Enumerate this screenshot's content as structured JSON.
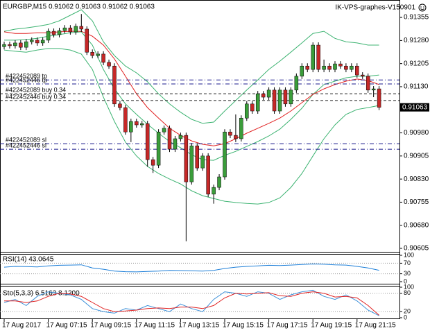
{
  "chart_data": [
    {
      "type": "candlestick",
      "title": "EURGBP,M15  0.91062 0.91063 0.91062 0.91063",
      "subtitle": "IK-VPS-graphes-V150901",
      "categories": [
        "17 Aug 2017",
        null,
        null,
        null,
        null,
        null,
        null,
        null,
        "17 Aug 07:15",
        null,
        null,
        null,
        null,
        null,
        null,
        null,
        "17 Aug 09:15",
        null,
        null,
        null,
        null,
        null,
        null,
        null,
        "17 Aug 11:15",
        null,
        null,
        null,
        null,
        null,
        null,
        null,
        "17 Aug 13:15",
        null,
        null,
        null,
        null,
        null,
        null,
        null,
        "17 Aug 15:15",
        null,
        null,
        null,
        null,
        null,
        null,
        null,
        "17 Aug 17:15",
        null,
        null,
        null,
        null,
        null,
        null,
        null,
        "17 Aug 19:15",
        null,
        null,
        null,
        null,
        null,
        null,
        null,
        "17 Aug 21:15",
        null,
        null,
        null,
        null
      ],
      "open": [
        0.9126,
        0.91267,
        0.91263,
        0.91272,
        0.91258,
        0.91276,
        0.91281,
        0.91272,
        0.91281,
        0.9131,
        0.91299,
        0.91312,
        0.91321,
        0.91308,
        0.91326,
        0.91317,
        0.91242,
        0.91231,
        0.91236,
        0.91209,
        0.91197,
        0.91074,
        0.91062,
        0.90983,
        0.91017,
        0.91006,
        0.9101,
        0.90893,
        0.90875,
        0.90983,
        0.90995,
        0.90927,
        0.90961,
        0.90972,
        0.90821,
        0.90938,
        0.90866,
        0.90905,
        0.90781,
        0.90803,
        0.90837,
        0.90983,
        0.90972,
        0.90961,
        0.91028,
        0.91074,
        0.91051,
        0.91107,
        0.91096,
        0.91119,
        0.91051,
        0.91119,
        0.91074,
        0.91119,
        0.91164,
        0.91197,
        0.91186,
        0.91265,
        0.91186,
        0.91197,
        0.91186,
        0.91204,
        0.91197,
        0.91186,
        0.91197,
        0.91168,
        0.91164,
        0.91119,
        0.91123
      ],
      "high": [
        0.91276,
        0.91276,
        0.91281,
        0.91281,
        0.91285,
        0.9129,
        0.9129,
        0.9129,
        0.91319,
        0.91319,
        0.91321,
        0.9133,
        0.9133,
        0.91335,
        0.91366,
        0.91326,
        0.91251,
        0.91245,
        0.91245,
        0.91218,
        0.91206,
        0.91083,
        0.91071,
        0.91026,
        0.91026,
        0.91019,
        0.91019,
        0.90902,
        0.90992,
        0.91004,
        0.91004,
        0.9097,
        0.90981,
        0.90981,
        0.90947,
        0.90947,
        0.90914,
        0.90914,
        0.90812,
        0.90846,
        0.90992,
        0.90992,
        0.9104,
        0.91037,
        0.91083,
        0.91083,
        0.91116,
        0.91116,
        0.91128,
        0.91128,
        0.91128,
        0.91128,
        0.91128,
        0.91173,
        0.91206,
        0.91206,
        0.91274,
        0.91274,
        0.91218,
        0.91206,
        0.91213,
        0.91213,
        0.91206,
        0.91206,
        0.91206,
        0.91177,
        0.91173,
        0.91132,
        0.91132
      ],
      "low": [
        0.91251,
        0.91254,
        0.91254,
        0.91249,
        0.91249,
        0.91267,
        0.91263,
        0.91263,
        0.91272,
        0.9129,
        0.9129,
        0.91303,
        0.91299,
        0.91299,
        0.91308,
        0.91233,
        0.91222,
        0.91222,
        0.912,
        0.91188,
        0.91065,
        0.91053,
        0.90974,
        0.9095,
        0.90997,
        0.90997,
        0.9087,
        0.9085,
        0.90866,
        0.90974,
        0.90918,
        0.90918,
        0.90952,
        0.90628,
        0.90812,
        0.90857,
        0.90857,
        0.90772,
        0.9075,
        0.90794,
        0.90828,
        0.90963,
        0.9095,
        0.90952,
        0.91019,
        0.91042,
        0.91042,
        0.91087,
        0.91087,
        0.91042,
        0.91042,
        0.91065,
        0.91065,
        0.9111,
        0.91155,
        0.91177,
        0.91177,
        0.91177,
        0.91177,
        0.91177,
        0.91177,
        0.91188,
        0.91177,
        0.91177,
        0.91159,
        0.91155,
        0.9111,
        0.91096,
        0.91054
      ],
      "close": [
        0.91267,
        0.91263,
        0.91272,
        0.91258,
        0.91276,
        0.91281,
        0.91272,
        0.91281,
        0.9131,
        0.91299,
        0.91312,
        0.91321,
        0.91308,
        0.91326,
        0.91317,
        0.91242,
        0.91231,
        0.91236,
        0.91209,
        0.91197,
        0.91074,
        0.91062,
        0.90983,
        0.91017,
        0.91006,
        0.9101,
        0.90893,
        0.90875,
        0.90983,
        0.90995,
        0.90927,
        0.90961,
        0.90972,
        0.90821,
        0.90938,
        0.90866,
        0.90905,
        0.90781,
        0.90803,
        0.90837,
        0.90983,
        0.90972,
        0.90961,
        0.91028,
        0.91074,
        0.91051,
        0.91107,
        0.91096,
        0.91119,
        0.91051,
        0.91119,
        0.91074,
        0.91119,
        0.91164,
        0.91197,
        0.91186,
        0.91265,
        0.91186,
        0.91197,
        0.91186,
        0.91204,
        0.91197,
        0.91186,
        0.91197,
        0.91168,
        0.91164,
        0.91119,
        0.91123,
        0.91063
      ],
      "up_color": "#3a9d3a",
      "down_color": "#c62828",
      "ylim": [
        0.90596,
        0.91407
      ],
      "yticks": [
        0.91355,
        {
          "value": 0.9128,
          "label": "0.91280"
        },
        0.91205,
        {
          "value": 0.9113,
          "label": "0.91130"
        },
        {
          "value": 0.9098,
          "label": "0.90980"
        },
        0.90905,
        {
          "value": 0.9083,
          "label": "0.90830"
        },
        0.90755,
        {
          "value": 0.9068,
          "label": "0.90680"
        },
        0.90605
      ],
      "last_price": 0.91063,
      "x": [
        0,
        2,
        4,
        6,
        8,
        10,
        12,
        14,
        16,
        18,
        20,
        22,
        24,
        26,
        28,
        30,
        32,
        34,
        36,
        38,
        40,
        42,
        44,
        46,
        48,
        50,
        52,
        54,
        56,
        58,
        60,
        62,
        64,
        66,
        68
      ],
      "overlays": [
        {
          "color": "#3cb371",
          "values": [
            0.9131,
            0.91317,
            0.91321,
            0.91326,
            0.91332,
            0.91344,
            0.91362,
            0.9138,
            0.91344,
            0.91276,
            0.91231,
            0.91197,
            0.91175,
            0.91146,
            0.91107,
            0.91074,
            0.91047,
            0.91024,
            0.91011,
            0.91015,
            0.91051,
            0.91085,
            0.91119,
            0.91152,
            0.91186,
            0.91213,
            0.91242,
            0.91272,
            0.91303,
            0.9131,
            0.91287,
            0.91276,
            0.91272,
            0.91265,
            0.91265
          ]
        },
        {
          "color": "#3cb371",
          "values": [
            0.91249,
            0.91245,
            0.91242,
            0.91249,
            0.91254,
            0.91254,
            0.91249,
            0.91236,
            0.91186,
            0.91096,
            0.91017,
            0.9095,
            0.90905,
            0.90871,
            0.90848,
            0.9083,
            0.90814,
            0.90792,
            0.90776,
            0.90767,
            0.90758,
            0.90754,
            0.90751,
            0.90749,
            0.90754,
            0.90769,
            0.90803,
            0.90848,
            0.90905,
            0.90961,
            0.91006,
            0.9104,
            0.91056,
            0.91062,
            0.91069
          ]
        },
        {
          "color": "#3cb371",
          "values": [
            0.91281,
            0.91281,
            0.91283,
            0.91287,
            0.91294,
            0.91299,
            0.91305,
            0.91308,
            0.91265,
            0.91186,
            0.91123,
            0.91074,
            0.9104,
            0.91008,
            0.90979,
            0.90952,
            0.90932,
            0.90909,
            0.90893,
            0.90891,
            0.90907,
            0.9092,
            0.90936,
            0.90952,
            0.9097,
            0.90992,
            0.91024,
            0.9106,
            0.91105,
            0.91137,
            0.91148,
            0.91159,
            0.91164,
            0.91164,
            0.91168
          ]
        },
        {
          "color": "#e02020",
          "values": [
            0.91308,
            0.91303,
            0.91303,
            0.91305,
            0.91305,
            0.91308,
            0.9131,
            0.9131,
            0.91294,
            0.91265,
            0.9122,
            0.91164,
            0.91107,
            0.91062,
            0.91028,
            0.90995,
            0.90972,
            0.90954,
            0.90943,
            0.90938,
            0.90945,
            0.90961,
            0.90979,
            0.90995,
            0.91011,
            0.91028,
            0.91051,
            0.91078,
            0.91105,
            0.91123,
            0.91137,
            0.91148,
            0.91155,
            0.9115,
            0.91137
          ]
        }
      ],
      "levels": [
        {
          "label": "#422452089 tp",
          "value": 0.91152,
          "color": "#1a1a8c",
          "dash": "6 3 1 3"
        },
        {
          "label": "#422452446 tp",
          "value": 0.91139,
          "color": "#1a1a8c",
          "dash": "6 3 1 3"
        },
        {
          "label": "#422452089 buy 0.34",
          "value": 0.91107,
          "color": "#222222",
          "dash": "4 3"
        },
        {
          "label": "#422452446 buy 0.34",
          "value": 0.91085,
          "color": "#222222",
          "dash": "4 3"
        },
        {
          "label": "#422452089 sl",
          "value": 0.90945,
          "color": "#1a1a8c",
          "dash": "6 3 1 3"
        },
        {
          "label": "#422452446 sl",
          "value": 0.90927,
          "color": "#1a1a8c",
          "dash": "6 3 1 3"
        }
      ]
    },
    {
      "type": "line",
      "title": "RSI(14) 43.0645",
      "x": [
        0,
        2,
        4,
        6,
        8,
        10,
        12,
        14,
        16,
        18,
        20,
        22,
        24,
        26,
        28,
        30,
        32,
        34,
        36,
        38,
        40,
        42,
        44,
        46,
        48,
        50,
        52,
        54,
        56,
        58,
        60,
        62,
        64,
        66,
        68
      ],
      "series": [
        {
          "color": "#1e7fd8",
          "values": [
            55,
            58,
            57,
            56,
            60,
            62,
            63,
            64,
            52,
            47,
            40,
            38,
            37,
            39,
            40,
            43,
            42,
            41,
            40,
            43,
            50,
            55,
            58,
            60,
            62,
            61,
            63,
            65,
            67,
            66,
            64,
            63,
            58,
            52,
            43.0645
          ]
        }
      ],
      "ylim": [
        0,
        100
      ],
      "yticks": [
        0,
        30,
        70,
        100
      ]
    },
    {
      "type": "line",
      "title": "Sto(5,3,3) 6.5163 8.1200",
      "x": [
        0,
        2,
        4,
        6,
        8,
        10,
        12,
        14,
        16,
        18,
        20,
        22,
        24,
        26,
        28,
        30,
        32,
        34,
        36,
        38,
        40,
        42,
        44,
        46,
        48,
        50,
        52,
        54,
        56,
        58,
        60,
        62,
        64,
        66,
        68
      ],
      "series": [
        {
          "color": "#3a8fd8",
          "values": [
            50,
            60,
            40,
            70,
            85,
            80,
            75,
            60,
            30,
            20,
            15,
            30,
            25,
            40,
            30,
            20,
            45,
            30,
            20,
            60,
            85,
            80,
            70,
            85,
            80,
            60,
            75,
            85,
            90,
            70,
            60,
            75,
            55,
            25,
            6.5163
          ]
        },
        {
          "color": "#e02020",
          "values": [
            55,
            55,
            50,
            55,
            70,
            80,
            78,
            70,
            50,
            30,
            20,
            22,
            25,
            30,
            32,
            30,
            35,
            35,
            30,
            40,
            65,
            80,
            78,
            80,
            82,
            72,
            70,
            80,
            85,
            80,
            68,
            70,
            65,
            40,
            8.12
          ]
        }
      ],
      "ylim": [
        0,
        100
      ],
      "yticks": [
        0,
        20,
        80,
        100
      ]
    }
  ]
}
